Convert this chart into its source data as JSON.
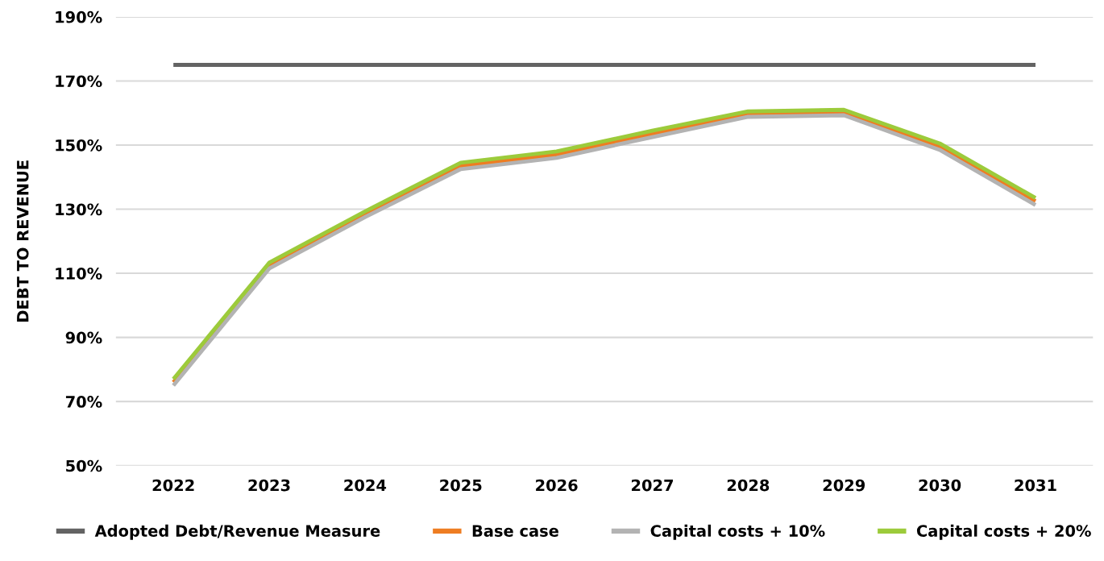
{
  "chart_data": {
    "type": "line",
    "ylabel": "DEBT TO REVENUE",
    "categories": [
      "2022",
      "2023",
      "2024",
      "2025",
      "2026",
      "2027",
      "2028",
      "2029",
      "2030",
      "2031"
    ],
    "series": [
      {
        "name": "Adopted Debt/Revenue Measure",
        "color": "#636363",
        "values": [
          175,
          175,
          175,
          175,
          175,
          175,
          175,
          175,
          175,
          175
        ]
      },
      {
        "name": "Base case",
        "color": "#ee7d22",
        "values": [
          76,
          112.5,
          128.5,
          143.5,
          147,
          153.5,
          159.5,
          160,
          149.5,
          132.5
        ]
      },
      {
        "name": "Capital costs + 10%",
        "color": "#b3b3b3",
        "values": [
          75,
          111.5,
          127.5,
          142.5,
          146,
          152.5,
          158.8,
          159.3,
          148.5,
          131.3
        ]
      },
      {
        "name": "Capital costs + 20%",
        "color": "#9ccb3b",
        "values": [
          77,
          113.3,
          129.3,
          144.5,
          148,
          154.5,
          160.5,
          161,
          150.5,
          133.5
        ]
      }
    ],
    "ylim": [
      50,
      190
    ],
    "yticks": [
      {
        "value": 50,
        "label": "50%"
      },
      {
        "value": 70,
        "label": "70%"
      },
      {
        "value": 90,
        "label": "90%"
      },
      {
        "value": 110,
        "label": "110%"
      },
      {
        "value": 130,
        "label": "130%"
      },
      {
        "value": 150,
        "label": "150%"
      },
      {
        "value": 170,
        "label": "170%"
      },
      {
        "value": 190,
        "label": "190%"
      }
    ],
    "grid": "y",
    "legend": "bottom",
    "marker": "none",
    "line_style": "solid"
  }
}
